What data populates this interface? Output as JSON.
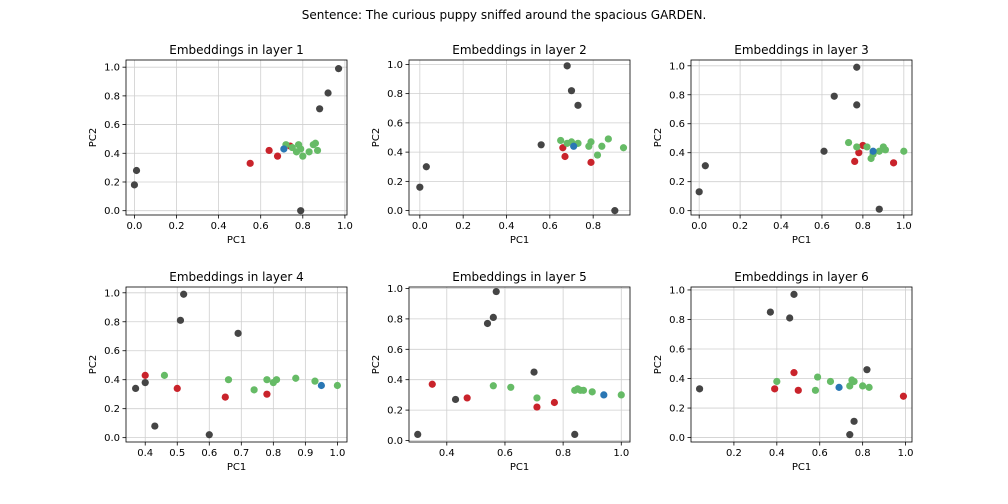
{
  "suptitle": "Sentence: The curious puppy sniffed around the spacious GARDEN.",
  "colors": {
    "dark": "#454545",
    "red": "#c9232b",
    "green": "#66bb66",
    "blue": "#2a77b4",
    "grid": "#cfcfcf",
    "axis": "#000000"
  },
  "chart_data": [
    {
      "type": "scatter",
      "title": "Embeddings in layer 1",
      "xlabel": "PC1",
      "ylabel": "PC2",
      "xlim": [
        -0.04,
        1.01
      ],
      "ylim": [
        -0.03,
        1.05
      ],
      "xticks": [
        "0.0",
        "0.2",
        "0.4",
        "0.6",
        "0.8",
        "1.0"
      ],
      "xtick_values": [
        0,
        0.2,
        0.4,
        0.6,
        0.8,
        1.0
      ],
      "yticks": [
        "0.0",
        "0.2",
        "0.4",
        "0.6",
        "0.8",
        "1.0"
      ],
      "ytick_values": [
        0,
        0.2,
        0.4,
        0.6,
        0.8,
        1.0
      ],
      "grid": true,
      "series": [
        {
          "color": "dark",
          "points": [
            [
              0.0,
              0.18
            ],
            [
              0.01,
              0.28
            ],
            [
              0.79,
              0.0
            ],
            [
              0.88,
              0.71
            ],
            [
              0.92,
              0.82
            ],
            [
              0.97,
              0.99
            ]
          ]
        },
        {
          "color": "red",
          "points": [
            [
              0.55,
              0.33
            ],
            [
              0.64,
              0.42
            ],
            [
              0.68,
              0.38
            ],
            [
              0.74,
              0.45
            ]
          ]
        },
        {
          "color": "green",
          "points": [
            [
              0.72,
              0.46
            ],
            [
              0.75,
              0.44
            ],
            [
              0.77,
              0.41
            ],
            [
              0.78,
              0.46
            ],
            [
              0.79,
              0.43
            ],
            [
              0.8,
              0.38
            ],
            [
              0.83,
              0.41
            ],
            [
              0.85,
              0.46
            ],
            [
              0.86,
              0.47
            ],
            [
              0.87,
              0.42
            ]
          ]
        },
        {
          "color": "blue",
          "points": [
            [
              0.71,
              0.43
            ]
          ]
        }
      ]
    },
    {
      "type": "scatter",
      "title": "Embeddings in layer 2",
      "xlabel": "PC1",
      "ylabel": "PC2",
      "xlim": [
        -0.05,
        0.97
      ],
      "ylim": [
        -0.03,
        1.03
      ],
      "xticks": [
        "0.0",
        "0.2",
        "0.4",
        "0.6",
        "0.8"
      ],
      "xtick_values": [
        0,
        0.2,
        0.4,
        0.6,
        0.8
      ],
      "yticks": [
        "0.0",
        "0.2",
        "0.4",
        "0.6",
        "0.8",
        "1.0"
      ],
      "ytick_values": [
        0,
        0.2,
        0.4,
        0.6,
        0.8,
        1.0
      ],
      "grid": true,
      "series": [
        {
          "color": "dark",
          "points": [
            [
              0.0,
              0.16
            ],
            [
              0.03,
              0.3
            ],
            [
              0.56,
              0.45
            ],
            [
              0.68,
              0.99
            ],
            [
              0.7,
              0.82
            ],
            [
              0.73,
              0.72
            ],
            [
              0.9,
              0.0
            ]
          ]
        },
        {
          "color": "red",
          "points": [
            [
              0.66,
              0.43
            ],
            [
              0.67,
              0.37
            ],
            [
              0.79,
              0.33
            ]
          ]
        },
        {
          "color": "green",
          "points": [
            [
              0.65,
              0.48
            ],
            [
              0.68,
              0.46
            ],
            [
              0.73,
              0.46
            ],
            [
              0.78,
              0.44
            ],
            [
              0.79,
              0.47
            ],
            [
              0.82,
              0.38
            ],
            [
              0.84,
              0.44
            ],
            [
              0.87,
              0.49
            ],
            [
              0.94,
              0.43
            ],
            [
              0.7,
              0.47
            ]
          ]
        },
        {
          "color": "blue",
          "points": [
            [
              0.71,
              0.44
            ]
          ]
        }
      ]
    },
    {
      "type": "scatter",
      "title": "Embeddings in layer 3",
      "xlabel": "PC1",
      "ylabel": "PC2",
      "xlim": [
        -0.04,
        1.04
      ],
      "ylim": [
        -0.03,
        1.04
      ],
      "xticks": [
        "0.0",
        "0.2",
        "0.4",
        "0.6",
        "0.8",
        "1.0"
      ],
      "xtick_values": [
        0,
        0.2,
        0.4,
        0.6,
        0.8,
        1.0
      ],
      "yticks": [
        "0.0",
        "0.2",
        "0.4",
        "0.6",
        "0.8",
        "1.0"
      ],
      "ytick_values": [
        0,
        0.2,
        0.4,
        0.6,
        0.8,
        1.0
      ],
      "grid": true,
      "series": [
        {
          "color": "dark",
          "points": [
            [
              0.0,
              0.13
            ],
            [
              0.03,
              0.31
            ],
            [
              0.61,
              0.41
            ],
            [
              0.66,
              0.79
            ],
            [
              0.77,
              0.99
            ],
            [
              0.77,
              0.73
            ],
            [
              0.88,
              0.01
            ]
          ]
        },
        {
          "color": "red",
          "points": [
            [
              0.76,
              0.34
            ],
            [
              0.78,
              0.4
            ],
            [
              0.8,
              0.45
            ],
            [
              0.95,
              0.33
            ]
          ]
        },
        {
          "color": "green",
          "points": [
            [
              0.73,
              0.47
            ],
            [
              0.77,
              0.44
            ],
            [
              0.82,
              0.44
            ],
            [
              0.84,
              0.36
            ],
            [
              0.88,
              0.41
            ],
            [
              0.9,
              0.44
            ],
            [
              0.91,
              0.42
            ],
            [
              1.0,
              0.41
            ],
            [
              0.85,
              0.39
            ]
          ]
        },
        {
          "color": "blue",
          "points": [
            [
              0.85,
              0.41
            ]
          ]
        }
      ]
    },
    {
      "type": "scatter",
      "title": "Embeddings in layer 4",
      "xlabel": "PC1",
      "ylabel": "PC2",
      "xlim": [
        0.34,
        1.03
      ],
      "ylim": [
        -0.03,
        1.04
      ],
      "xticks": [
        "0.4",
        "0.5",
        "0.6",
        "0.7",
        "0.8",
        "0.9",
        "1.0"
      ],
      "xtick_values": [
        0.4,
        0.5,
        0.6,
        0.7,
        0.8,
        0.9,
        1.0
      ],
      "yticks": [
        "0.0",
        "0.2",
        "0.4",
        "0.6",
        "0.8",
        "1.0"
      ],
      "ytick_values": [
        0,
        0.2,
        0.4,
        0.6,
        0.8,
        1.0
      ],
      "grid": true,
      "series": [
        {
          "color": "dark",
          "points": [
            [
              0.37,
              0.34
            ],
            [
              0.4,
              0.38
            ],
            [
              0.43,
              0.08
            ],
            [
              0.51,
              0.81
            ],
            [
              0.52,
              0.99
            ],
            [
              0.6,
              0.02
            ],
            [
              0.69,
              0.72
            ]
          ]
        },
        {
          "color": "red",
          "points": [
            [
              0.4,
              0.43
            ],
            [
              0.5,
              0.34
            ],
            [
              0.65,
              0.28
            ],
            [
              0.78,
              0.3
            ]
          ]
        },
        {
          "color": "green",
          "points": [
            [
              0.46,
              0.43
            ],
            [
              0.66,
              0.4
            ],
            [
              0.74,
              0.33
            ],
            [
              0.78,
              0.4
            ],
            [
              0.8,
              0.38
            ],
            [
              0.81,
              0.4
            ],
            [
              0.87,
              0.41
            ],
            [
              0.93,
              0.39
            ],
            [
              1.0,
              0.36
            ]
          ]
        },
        {
          "color": "blue",
          "points": [
            [
              0.95,
              0.36
            ]
          ]
        }
      ]
    },
    {
      "type": "scatter",
      "title": "Embeddings in layer 5",
      "xlabel": "PC1",
      "ylabel": "PC2",
      "xlim": [
        0.27,
        1.03
      ],
      "ylim": [
        -0.01,
        1.01
      ],
      "xticks": [
        "0.4",
        "0.6",
        "0.8",
        "1.0"
      ],
      "xtick_values": [
        0.4,
        0.6,
        0.8,
        1.0
      ],
      "yticks": [
        "0.0",
        "0.2",
        "0.4",
        "0.6",
        "0.8",
        "1.0"
      ],
      "ytick_values": [
        0,
        0.2,
        0.4,
        0.6,
        0.8,
        1.0
      ],
      "grid": true,
      "series": [
        {
          "color": "dark",
          "points": [
            [
              0.3,
              0.04
            ],
            [
              0.43,
              0.27
            ],
            [
              0.54,
              0.77
            ],
            [
              0.56,
              0.81
            ],
            [
              0.57,
              0.98
            ],
            [
              0.7,
              0.45
            ],
            [
              0.84,
              0.04
            ]
          ]
        },
        {
          "color": "red",
          "points": [
            [
              0.35,
              0.37
            ],
            [
              0.47,
              0.28
            ],
            [
              0.71,
              0.22
            ],
            [
              0.77,
              0.25
            ]
          ]
        },
        {
          "color": "green",
          "points": [
            [
              0.56,
              0.36
            ],
            [
              0.62,
              0.35
            ],
            [
              0.71,
              0.28
            ],
            [
              0.84,
              0.33
            ],
            [
              0.85,
              0.34
            ],
            [
              0.86,
              0.33
            ],
            [
              0.87,
              0.33
            ],
            [
              0.9,
              0.32
            ],
            [
              1.0,
              0.3
            ]
          ]
        },
        {
          "color": "blue",
          "points": [
            [
              0.94,
              0.3
            ]
          ]
        }
      ]
    },
    {
      "type": "scatter",
      "title": "Embeddings in layer 6",
      "xlabel": "PC1",
      "ylabel": "PC2",
      "xlim": [
        0.0,
        1.03
      ],
      "ylim": [
        -0.03,
        1.02
      ],
      "xticks": [
        "0.2",
        "0.4",
        "0.6",
        "0.8",
        "1.0"
      ],
      "xtick_values": [
        0.2,
        0.4,
        0.6,
        0.8,
        1.0
      ],
      "yticks": [
        "0.0",
        "0.2",
        "0.4",
        "0.6",
        "0.8",
        "1.0"
      ],
      "ytick_values": [
        0,
        0.2,
        0.4,
        0.6,
        0.8,
        1.0
      ],
      "grid": true,
      "series": [
        {
          "color": "dark",
          "points": [
            [
              0.04,
              0.33
            ],
            [
              0.37,
              0.85
            ],
            [
              0.46,
              0.81
            ],
            [
              0.48,
              0.97
            ],
            [
              0.74,
              0.02
            ],
            [
              0.76,
              0.11
            ],
            [
              0.82,
              0.46
            ]
          ]
        },
        {
          "color": "red",
          "points": [
            [
              0.39,
              0.33
            ],
            [
              0.48,
              0.44
            ],
            [
              0.5,
              0.32
            ],
            [
              0.99,
              0.28
            ]
          ]
        },
        {
          "color": "green",
          "points": [
            [
              0.4,
              0.38
            ],
            [
              0.58,
              0.32
            ],
            [
              0.59,
              0.41
            ],
            [
              0.65,
              0.38
            ],
            [
              0.74,
              0.35
            ],
            [
              0.75,
              0.39
            ],
            [
              0.76,
              0.38
            ],
            [
              0.8,
              0.35
            ],
            [
              0.83,
              0.34
            ]
          ]
        },
        {
          "color": "blue",
          "points": [
            [
              0.69,
              0.34
            ]
          ]
        }
      ]
    }
  ]
}
